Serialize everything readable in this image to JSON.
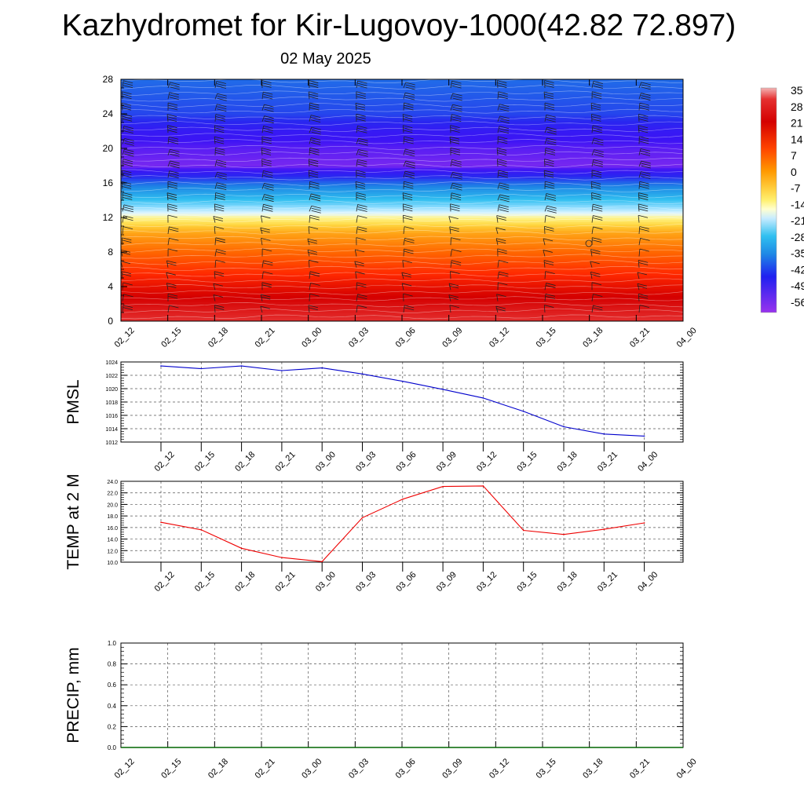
{
  "title": "Kazhydromet for Kir-Lugovoy-1000(42.82 72.897)",
  "subtitle": "02 May 2025",
  "time_labels": [
    "02_12",
    "02_15",
    "02_18",
    "02_21",
    "03_00",
    "03_03",
    "03_06",
    "03_09",
    "03_12",
    "03_15",
    "03_18",
    "03_21",
    "04_00"
  ],
  "chart_data": [
    {
      "type": "heatmap",
      "name": "vertical-cross-section",
      "x_categories": [
        "02_12",
        "02_15",
        "02_18",
        "02_21",
        "03_00",
        "03_03",
        "03_06",
        "03_09",
        "03_12",
        "03_15",
        "03_18",
        "03_21",
        "04_00"
      ],
      "y_ticks": [
        "0",
        "4",
        "8",
        "12",
        "16",
        "20",
        "24",
        "28"
      ],
      "ylim": [
        0,
        28
      ],
      "colorbar_labels": [
        "35",
        "28",
        "21",
        "14",
        "7",
        "0",
        "-7",
        "-14",
        "-21",
        "-28",
        "-35",
        "-42",
        "-49",
        "-56"
      ],
      "colorbar_range": [
        -56,
        35
      ],
      "temperature_profile": [
        {
          "alt": 0,
          "t": 28
        },
        {
          "alt": 4,
          "t": 18
        },
        {
          "alt": 8,
          "t": 7
        },
        {
          "alt": 11,
          "t": -3
        },
        {
          "alt": 12,
          "t": -8
        },
        {
          "alt": 14,
          "t": -24
        },
        {
          "alt": 16,
          "t": -38
        },
        {
          "alt": 18,
          "t": -56
        },
        {
          "alt": 20,
          "t": -54
        },
        {
          "alt": 22,
          "t": -50
        },
        {
          "alt": 24,
          "t": -42
        },
        {
          "alt": 28,
          "t": -38
        }
      ]
    },
    {
      "type": "line",
      "ylabel": "PMSL",
      "categories": [
        "02_12",
        "02_15",
        "02_18",
        "02_21",
        "03_00",
        "03_03",
        "03_06",
        "03_09",
        "03_12",
        "03_15",
        "03_18",
        "03_21",
        "04_00"
      ],
      "values": [
        1023.4,
        1023.0,
        1023.4,
        1022.7,
        1023.1,
        1022.2,
        1021.1,
        1019.9,
        1018.6,
        1016.6,
        1014.3,
        1013.2,
        1012.9
      ],
      "ylim": [
        1012,
        1024
      ],
      "y_ticks": [
        "1012",
        "1014",
        "1016",
        "1018",
        "1020",
        "1022",
        "1024"
      ],
      "color": "#0000cc",
      "grid": true
    },
    {
      "type": "line",
      "ylabel": "TEMP at 2 M",
      "categories": [
        "02_12",
        "02_15",
        "02_18",
        "02_21",
        "03_00",
        "03_03",
        "03_06",
        "03_09",
        "03_12",
        "03_15",
        "03_18",
        "03_21",
        "04_00"
      ],
      "values": [
        16.9,
        15.6,
        12.4,
        10.8,
        10.1,
        17.7,
        20.9,
        23.1,
        23.2,
        15.5,
        14.8,
        15.7,
        16.8
      ],
      "ylim": [
        10,
        24
      ],
      "y_ticks": [
        "10.0",
        "12.0",
        "14.0",
        "16.0",
        "18.0",
        "20.0",
        "22.0",
        "24.0"
      ],
      "color": "#ee0000",
      "grid": true
    },
    {
      "type": "line",
      "ylabel": "PRECIP, mm",
      "categories": [
        "02_12",
        "02_15",
        "02_18",
        "02_21",
        "03_00",
        "03_03",
        "03_06",
        "03_09",
        "03_12",
        "03_15",
        "03_18",
        "03_21",
        "04_00"
      ],
      "values": [
        0,
        0,
        0,
        0,
        0,
        0,
        0,
        0,
        0,
        0,
        0,
        0,
        0
      ],
      "ylim": [
        0,
        1
      ],
      "y_ticks": [
        "0.0",
        "0.2",
        "0.4",
        "0.6",
        "0.8",
        "1.0"
      ],
      "color": "#006600",
      "grid": true
    }
  ]
}
